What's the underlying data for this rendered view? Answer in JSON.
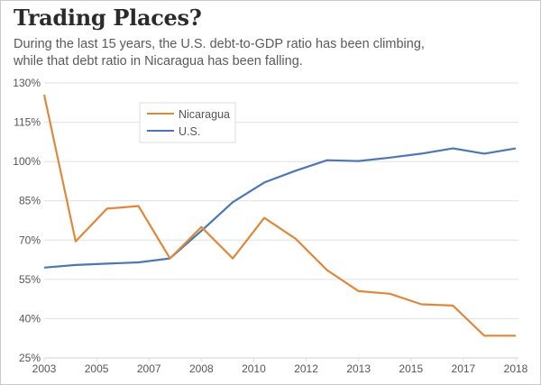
{
  "header": {
    "title": "Trading Places?",
    "subtitle_line1": "During the last 15 years, the U.S. debt-to-GDP ratio has been climbing,",
    "subtitle_line2": "while that debt ratio in Nicaragua has been falling."
  },
  "chart_data": {
    "type": "line",
    "title": "Trading Places?",
    "subtitle": "During the last 15 years, the U.S. debt-to-GDP ratio has been climbing, while that debt ratio in Nicaragua has been falling.",
    "xlabel": "",
    "ylabel": "",
    "x": [
      2003,
      2004,
      2005,
      2006,
      2007,
      2008,
      2009,
      2010,
      2011,
      2012,
      2013,
      2014,
      2015,
      2016,
      2017,
      2018
    ],
    "x_tick_labels": [
      "2003",
      "2005",
      "2007",
      "2008",
      "2010",
      "2012",
      "2013",
      "2015",
      "2017",
      "2018"
    ],
    "y_ticks": [
      25,
      40,
      55,
      70,
      85,
      100,
      115,
      130
    ],
    "y_tick_labels": [
      "25%",
      "40%",
      "55%",
      "70%",
      "85%",
      "100%",
      "115%",
      "130%"
    ],
    "ylim": [
      25,
      130
    ],
    "grid": true,
    "legend_position": "top-left",
    "series": [
      {
        "name": "Nicaragua",
        "color": "#e0883a",
        "values": [
          125.5,
          69.5,
          82,
          83,
          63,
          75,
          63,
          78.5,
          70.5,
          58.5,
          50.5,
          49.5,
          45.5,
          45,
          33.5,
          33.5
        ]
      },
      {
        "name": "U.S.",
        "color": "#4a78b5",
        "values": [
          59.5,
          60.5,
          61,
          61.5,
          63,
          73.5,
          84.5,
          92,
          96.5,
          100.5,
          100.2,
          101.5,
          103,
          105,
          103,
          105
        ]
      }
    ]
  },
  "colors": {
    "grid": "#e0e0e0",
    "axis_text": "#555555",
    "title": "#2b2b2b"
  }
}
